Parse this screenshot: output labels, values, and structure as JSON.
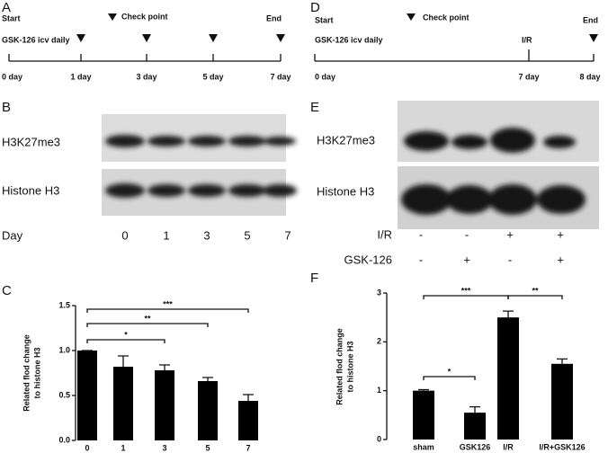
{
  "panels": {
    "a": {
      "letter": "A",
      "start": "Start",
      "end": "End",
      "checkpoint": "Check point",
      "treatment": "GSK-126 icv daily",
      "days": [
        "0 day",
        "1 day",
        "3 day",
        "5 day",
        "7 day"
      ]
    },
    "b": {
      "letter": "B",
      "rows": [
        "H3K27me3",
        "Histone H3"
      ],
      "day_label": "Day",
      "lanes": [
        "0",
        "1",
        "3",
        "5",
        "7"
      ]
    },
    "d": {
      "letter": "D",
      "start": "Start",
      "end": "End",
      "checkpoint": "Check point",
      "treatment": "GSK-126 icv daily",
      "event": "I/R",
      "days": [
        "0 day",
        "7 day",
        "8 day"
      ]
    },
    "e": {
      "letter": "E",
      "rows": [
        "H3K27me3",
        "Histone H3"
      ],
      "conditions": [
        {
          "name": "I/R",
          "signs": [
            "-",
            "-",
            "+",
            "+"
          ]
        },
        {
          "name": "GSK-126",
          "signs": [
            "-",
            "+",
            "-",
            "+"
          ]
        }
      ]
    }
  },
  "chart_data": [
    {
      "type": "bar",
      "letter": "C",
      "ylabel": [
        "Related flod change",
        "to histone H3"
      ],
      "categories": [
        "0",
        "1",
        "3",
        "5",
        "7"
      ],
      "values": [
        1.0,
        0.82,
        0.78,
        0.66,
        0.44
      ],
      "errors": [
        0,
        0.12,
        0.06,
        0.04,
        0.07
      ],
      "color": "#000000",
      "ylim": [
        0,
        1.5
      ],
      "yticks": [
        {
          "value": 0,
          "label": "0.0"
        },
        0.5,
        {
          "value": 1,
          "label": "1.0"
        },
        1.5
      ],
      "annotations": [
        {
          "text": "*",
          "between": [
            "0",
            "3"
          ]
        },
        {
          "text": "**",
          "between": [
            "0",
            "5"
          ]
        },
        {
          "text": "***",
          "between": [
            "0",
            "7"
          ]
        }
      ]
    },
    {
      "type": "bar",
      "letter": "F",
      "ylabel": [
        "Related flod change",
        "to histone H3"
      ],
      "categories": [
        "sham",
        "GSK126",
        "I/R",
        "I/R+GSK126"
      ],
      "values": [
        1.0,
        0.55,
        2.5,
        1.55
      ],
      "errors": [
        0.02,
        0.12,
        0.13,
        0.1
      ],
      "color": "#000000",
      "ylim": [
        0,
        3
      ],
      "yticks": [
        0,
        1,
        2,
        3
      ],
      "annotations": [
        {
          "text": "*",
          "between": [
            "sham",
            "GSK126"
          ]
        },
        {
          "text": "***",
          "between": [
            "sham",
            "I/R"
          ]
        },
        {
          "text": "**",
          "between": [
            "I/R",
            "I/R+GSK126"
          ]
        }
      ]
    }
  ]
}
